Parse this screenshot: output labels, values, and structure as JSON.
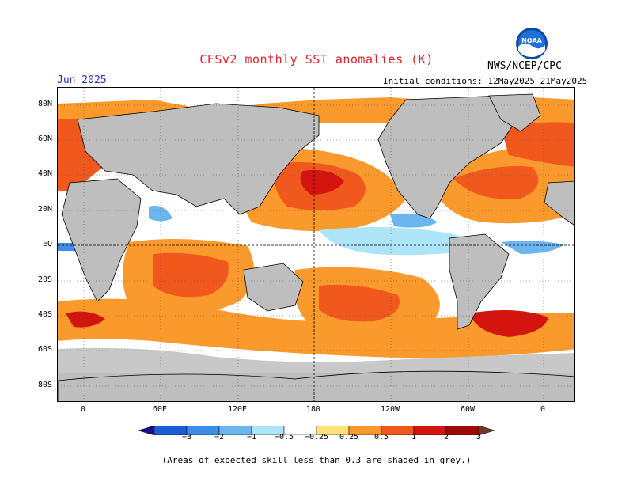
{
  "header": {
    "title": "CFSv2 monthly SST anomalies (K)",
    "period": "Jun 2025",
    "agency": "NWS/NCEP/CPC",
    "initial_conditions": "Initial conditions: 12May2025−21May2025",
    "logo_text": "NOAA"
  },
  "map": {
    "lat_labels": [
      "80N",
      "60N",
      "40N",
      "20N",
      "EQ",
      "20S",
      "40S",
      "60S",
      "80S"
    ],
    "lon_labels": [
      "0",
      "60E",
      "120E",
      "180",
      "120W",
      "60W",
      "0"
    ],
    "land_color": "#bebebe",
    "no_skill_color": "#c8c8c8",
    "ocean_base_color": "#ffffff"
  },
  "colorbar": {
    "levels": [
      "−3",
      "−2",
      "−1",
      "−0.5",
      "−0.25",
      "0.25",
      "0.5",
      "1",
      "2",
      "3"
    ],
    "colors": [
      "#1a0a8c",
      "#1a5cd6",
      "#3d8ee8",
      "#6cb6f0",
      "#aee4f8",
      "#ffffff",
      "#fde07a",
      "#fb9a2c",
      "#f0581e",
      "#d3140f",
      "#9c0a06",
      "#6b3a2a"
    ]
  },
  "footnote": "(Areas of expected skill less than 0.3 are shaded in grey.)"
}
